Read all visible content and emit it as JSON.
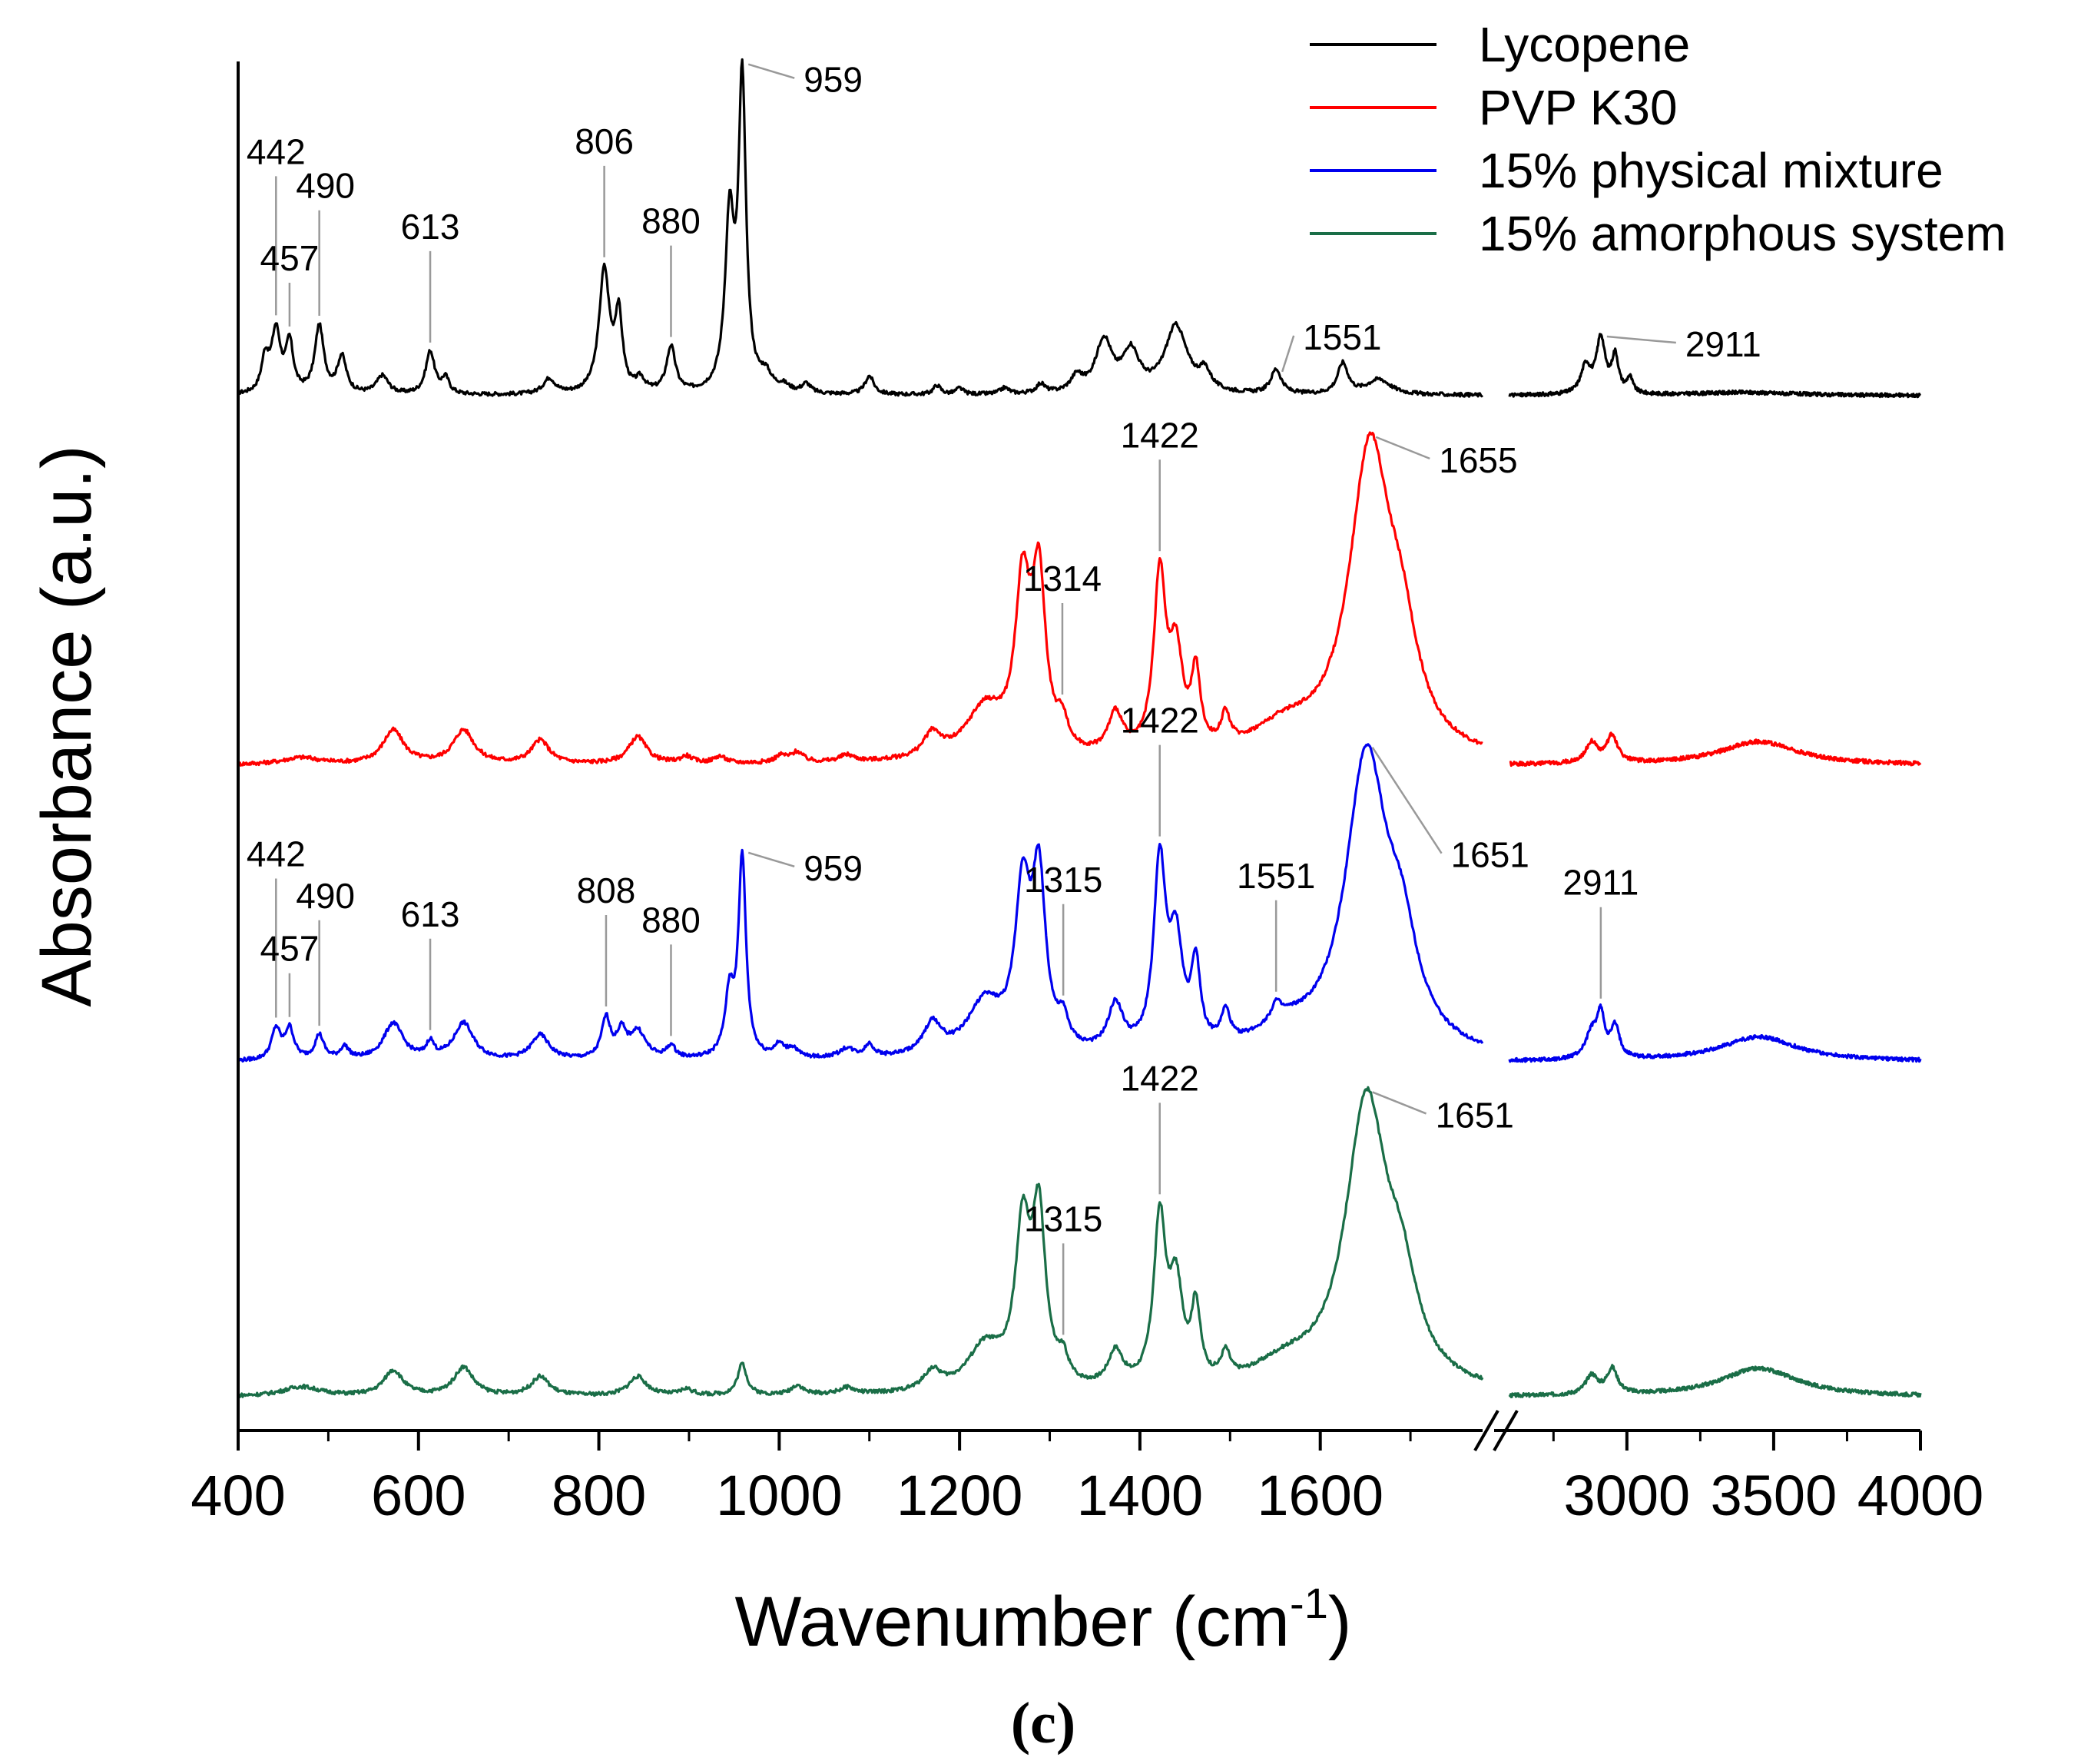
{
  "chart_data": {
    "type": "line",
    "title": "",
    "xlabel": "Wavenumber (cm",
    "xlabel_superscript": "-1",
    "xlabel_close": ")",
    "ylabel": "Absorbance (a.u.)",
    "panel_label": "(c)",
    "x_axis": {
      "broken": true,
      "segment1_range": [
        400,
        1780
      ],
      "segment2_range": [
        2600,
        4000
      ],
      "ticks_segment1": [
        400,
        600,
        800,
        1000,
        1200,
        1400,
        1600
      ],
      "ticks_segment2": [
        3000,
        3500,
        4000
      ],
      "tick_labels_segment1": [
        "400",
        "600",
        "800",
        "1000",
        "1200",
        "1400",
        "1600"
      ],
      "tick_labels_segment2": [
        "3000",
        "3500",
        "4000"
      ]
    },
    "legend": {
      "position": "top-right",
      "entries": [
        "Lycopene",
        "PVP K30",
        "15% physical mixture",
        "15% amorphous system"
      ]
    },
    "series": [
      {
        "name": "Lycopene",
        "color": "#000000",
        "baseline": 0.0,
        "peaks": [
          [
            430,
            0.11,
            5
          ],
          [
            442,
            0.2,
            6
          ],
          [
            457,
            0.16,
            5
          ],
          [
            490,
            0.22,
            6
          ],
          [
            515,
            0.12,
            6
          ],
          [
            560,
            0.06,
            8
          ],
          [
            613,
            0.14,
            6
          ],
          [
            630,
            0.05,
            5
          ],
          [
            745,
            0.05,
            8
          ],
          [
            806,
            0.4,
            7
          ],
          [
            822,
            0.24,
            5
          ],
          [
            846,
            0.04,
            6
          ],
          [
            880,
            0.15,
            6
          ],
          [
            945,
            0.55,
            6
          ],
          [
            959,
            1.0,
            5
          ],
          [
            985,
            0.05,
            8
          ],
          [
            1005,
            0.02,
            8
          ],
          [
            1030,
            0.03,
            6
          ],
          [
            1100,
            0.06,
            6
          ],
          [
            1175,
            0.03,
            5
          ],
          [
            1200,
            0.02,
            5
          ],
          [
            1250,
            0.02,
            6
          ],
          [
            1290,
            0.03,
            6
          ],
          [
            1330,
            0.05,
            8
          ],
          [
            1360,
            0.17,
            11
          ],
          [
            1390,
            0.13,
            11
          ],
          [
            1440,
            0.22,
            15
          ],
          [
            1472,
            0.06,
            8
          ],
          [
            1551,
            0.08,
            7
          ],
          [
            1625,
            0.1,
            7
          ],
          [
            1665,
            0.05,
            16
          ],
          [
            2860,
            0.09,
            20
          ],
          [
            2911,
            0.18,
            18
          ],
          [
            2960,
            0.12,
            14
          ],
          [
            3010,
            0.05,
            12
          ],
          [
            3400,
            0.01,
            200
          ]
        ],
        "peak_labels": [
          {
            "text": "442",
            "x": 442
          },
          {
            "text": "457",
            "x": 457
          },
          {
            "text": "490",
            "x": 490
          },
          {
            "text": "613",
            "x": 613
          },
          {
            "text": "806",
            "x": 806
          },
          {
            "text": "880",
            "x": 880
          },
          {
            "text": "959",
            "x": 959
          },
          {
            "text": "1551",
            "x": 1551
          },
          {
            "text": "2911",
            "x": 2911
          }
        ]
      },
      {
        "name": "PVP K30",
        "color": "#ff0000",
        "baseline": 0.0,
        "peaks": [
          [
            470,
            0.02,
            25
          ],
          [
            572,
            0.1,
            14
          ],
          [
            650,
            0.1,
            14
          ],
          [
            735,
            0.07,
            12
          ],
          [
            843,
            0.08,
            12
          ],
          [
            897,
            0.02,
            8
          ],
          [
            934,
            0.02,
            8
          ],
          [
            1002,
            0.02,
            8
          ],
          [
            1020,
            0.03,
            8
          ],
          [
            1075,
            0.02,
            10
          ],
          [
            1170,
            0.07,
            12
          ],
          [
            1228,
            0.15,
            26
          ],
          [
            1270,
            0.48,
            10
          ],
          [
            1288,
            0.5,
            9
          ],
          [
            1314,
            0.08,
            7
          ],
          [
            1373,
            0.12,
            10
          ],
          [
            1422,
            0.52,
            8
          ],
          [
            1440,
            0.28,
            9
          ],
          [
            1462,
            0.22,
            6
          ],
          [
            1495,
            0.09,
            6
          ],
          [
            1560,
            0.08,
            45
          ],
          [
            1655,
            0.9,
            28
          ],
          [
            1690,
            0.25,
            22
          ],
          [
            2880,
            0.06,
            25
          ],
          [
            2950,
            0.08,
            22
          ],
          [
            3450,
            0.07,
            160
          ]
        ],
        "peak_labels": [
          {
            "text": "1314",
            "x": 1314
          },
          {
            "text": "1422",
            "x": 1422
          },
          {
            "text": "1655",
            "x": 1655
          }
        ]
      },
      {
        "name": "15% physical mixture",
        "color": "#0000ee",
        "baseline": 0.0,
        "peaks": [
          [
            442,
            0.1,
            6
          ],
          [
            457,
            0.1,
            6
          ],
          [
            490,
            0.08,
            6
          ],
          [
            518,
            0.04,
            6
          ],
          [
            572,
            0.12,
            13
          ],
          [
            613,
            0.05,
            5
          ],
          [
            650,
            0.12,
            13
          ],
          [
            735,
            0.08,
            12
          ],
          [
            808,
            0.13,
            6
          ],
          [
            825,
            0.08,
            6
          ],
          [
            843,
            0.09,
            11
          ],
          [
            880,
            0.04,
            6
          ],
          [
            945,
            0.2,
            6
          ],
          [
            959,
            0.65,
            5
          ],
          [
            1000,
            0.04,
            7
          ],
          [
            1015,
            0.03,
            7
          ],
          [
            1075,
            0.03,
            10
          ],
          [
            1100,
            0.04,
            6
          ],
          [
            1170,
            0.1,
            12
          ],
          [
            1228,
            0.17,
            24
          ],
          [
            1270,
            0.5,
            10
          ],
          [
            1288,
            0.54,
            9
          ],
          [
            1315,
            0.08,
            7
          ],
          [
            1373,
            0.15,
            10
          ],
          [
            1422,
            0.6,
            8
          ],
          [
            1440,
            0.33,
            9
          ],
          [
            1462,
            0.26,
            6
          ],
          [
            1495,
            0.1,
            6
          ],
          [
            1551,
            0.05,
            6
          ],
          [
            1560,
            0.07,
            40
          ],
          [
            1651,
            0.95,
            28
          ],
          [
            1690,
            0.28,
            22
          ],
          [
            2880,
            0.08,
            25
          ],
          [
            2911,
            0.13,
            16
          ],
          [
            2960,
            0.1,
            18
          ],
          [
            3450,
            0.08,
            160
          ]
        ],
        "peak_labels": [
          {
            "text": "442",
            "x": 442
          },
          {
            "text": "457",
            "x": 457
          },
          {
            "text": "490",
            "x": 490
          },
          {
            "text": "613",
            "x": 613
          },
          {
            "text": "808",
            "x": 808
          },
          {
            "text": "880",
            "x": 880
          },
          {
            "text": "959",
            "x": 959
          },
          {
            "text": "1315",
            "x": 1315
          },
          {
            "text": "1422",
            "x": 1422
          },
          {
            "text": "1551",
            "x": 1551
          },
          {
            "text": "1651",
            "x": 1651
          },
          {
            "text": "2911",
            "x": 2911
          }
        ]
      },
      {
        "name": "15% amorphous system",
        "color": "#1a6e47",
        "baseline": 0.0,
        "peaks": [
          [
            470,
            0.03,
            25
          ],
          [
            572,
            0.08,
            13
          ],
          [
            650,
            0.09,
            13
          ],
          [
            735,
            0.06,
            12
          ],
          [
            843,
            0.06,
            12
          ],
          [
            897,
            0.02,
            8
          ],
          [
            959,
            0.1,
            6
          ],
          [
            1020,
            0.03,
            8
          ],
          [
            1075,
            0.02,
            10
          ],
          [
            1170,
            0.06,
            12
          ],
          [
            1228,
            0.14,
            24
          ],
          [
            1270,
            0.48,
            10
          ],
          [
            1288,
            0.52,
            9
          ],
          [
            1315,
            0.07,
            7
          ],
          [
            1373,
            0.11,
            10
          ],
          [
            1422,
            0.52,
            8
          ],
          [
            1440,
            0.3,
            9
          ],
          [
            1462,
            0.23,
            6
          ],
          [
            1495,
            0.08,
            6
          ],
          [
            1560,
            0.07,
            45
          ],
          [
            1651,
            0.9,
            28
          ],
          [
            1690,
            0.25,
            22
          ],
          [
            2880,
            0.06,
            25
          ],
          [
            2950,
            0.08,
            22
          ],
          [
            3450,
            0.09,
            160
          ]
        ],
        "peak_labels": [
          {
            "text": "1315",
            "x": 1315
          },
          {
            "text": "1422",
            "x": 1422
          },
          {
            "text": "1651",
            "x": 1651
          }
        ]
      }
    ]
  }
}
